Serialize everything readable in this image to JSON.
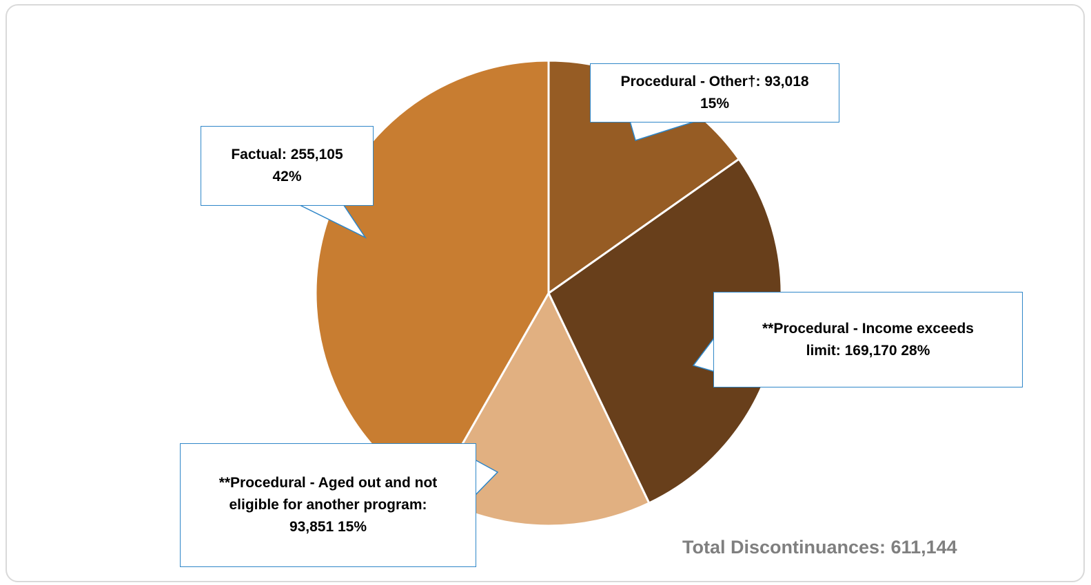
{
  "chart_data": {
    "type": "pie",
    "title": "",
    "slices": [
      {
        "name": "Procedural - Other†",
        "value": 93018,
        "percent": 15,
        "color": "#965c24",
        "label_line1": "Procedural - Other†:  93,018",
        "label_line2": "15%"
      },
      {
        "name": "**Procedural - Income exceeds limit",
        "value": 169170,
        "percent": 28,
        "color": "#683f1b",
        "label_line1": "**Procedural - Income exceeds",
        "label_line2": "limit:  169,170  28%"
      },
      {
        "name": "**Procedural - Aged out and not eligible for another program",
        "value": 93851,
        "percent": 15,
        "color": "#e1b081",
        "label_line1": "**Procedural - Aged out and not",
        "label_line2": "eligible for another program:",
        "label_line3": "93,851  15%"
      },
      {
        "name": "Factual",
        "value": 255105,
        "percent": 42,
        "color": "#c87d31",
        "label_line1": "Factual: 255,105",
        "label_line2": "42%"
      }
    ],
    "total_label": "Total Discontinuances: 611,144",
    "legend": "none",
    "start_angle": "12 o'clock",
    "direction": "clockwise"
  },
  "styles": {
    "callout_border_color": "#2e86c8",
    "separator_color": "#ffffff",
    "total_text_color": "#7f7f7f"
  }
}
